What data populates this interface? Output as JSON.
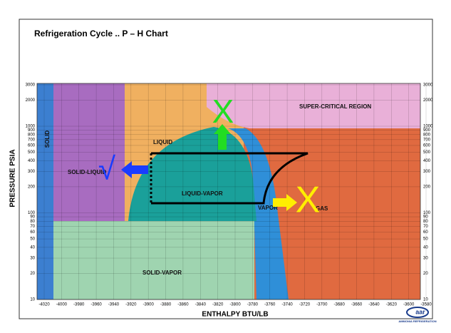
{
  "slide": {
    "title": "Refrigeration Cycle .. P – H Chart",
    "y_axis": {
      "label": "PRESSURE PSIA",
      "ticks": [
        3000,
        2000,
        1000,
        900,
        800,
        700,
        600,
        500,
        400,
        300,
        200,
        100,
        90,
        80,
        70,
        60,
        50,
        40,
        30,
        20,
        10
      ]
    },
    "x_axis": {
      "label": "ENTHALPY BTU/LB",
      "ticks": [
        -4020,
        -4000,
        -3980,
        -3960,
        -3940,
        -3920,
        -3900,
        -3880,
        -3860,
        -3840,
        -3820,
        -3800,
        -3780,
        -3760,
        -3740,
        -3720,
        -3700,
        -3680,
        -3660,
        -3640,
        -3620,
        -3600,
        -3580
      ]
    },
    "regions": [
      "SOLID",
      "SOLID-LIQUID",
      "LIQUID",
      "LIQUID-VAPOR",
      "VAPOR",
      "GAS",
      "SUPER-CRITICAL REGION",
      "SOLID-VAPOR"
    ],
    "marks": {
      "check": "√",
      "cross_top": "X",
      "cross_right": "X"
    },
    "logo": {
      "name": "aar",
      "caption": "AMMONIA REFRIGERATION"
    }
  }
}
